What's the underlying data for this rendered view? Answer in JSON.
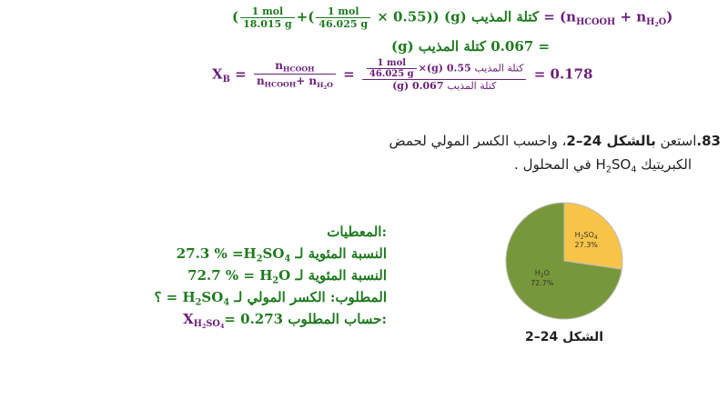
{
  "solution": {
    "line1": [
      "(",
      "1 mol",
      "18.015 g",
      "+(",
      "1 mol",
      "46.025 g",
      "× 0.55)) (g)",
      "كتلة المذيب",
      "= (n",
      "HCOOH",
      "+  n",
      "H",
      "2",
      "O",
      ")"
    ],
    "line2": [
      "(g)",
      "كتلة المذيب",
      "0.067 ="
    ],
    "line3": [
      "X",
      "B",
      "=",
      "n",
      "HCOOH",
      "n",
      "HCOOH",
      "+ n",
      "H",
      "2",
      "O",
      "=",
      "1 mol",
      "46.025 g",
      "×(g)",
      "كتلة المذيب",
      "0.55",
      "(g)",
      "كتلة المذيب",
      "0.067",
      "= 0.178"
    ]
  },
  "problem": {
    "line1": [
      "83.",
      "استعن ",
      "بالشكل 24–2",
      "، واحسب الكسر المولي لحمض"
    ],
    "line2": [
      "الكبريتيك ",
      "H",
      "2",
      "SO",
      "4",
      " في المحلول ."
    ]
  },
  "givens": {
    "heading": "المعطيات:",
    "line1": [
      "27.3 %",
      " =H",
      "2",
      "SO",
      "4",
      " النسبة المئوية لـ"
    ],
    "line2": [
      "72.7 %",
      " = H",
      "2",
      "O ",
      "النسبة المئوية لـ"
    ],
    "line3": [
      "؟ = ",
      "H",
      "2",
      "SO",
      "4",
      " المطلوب: الكسر المولي لـ"
    ],
    "line4": [
      "X",
      "H",
      "2",
      "SO",
      "4",
      "= 0.273 ",
      "حساب المطلوب:"
    ]
  },
  "figure": {
    "type": "pie",
    "caption": "الشكل 24–2",
    "slices": [
      {
        "name": [
          "H",
          "2",
          "SO",
          "4"
        ],
        "value": 27.3,
        "value_label": "27.3%",
        "color": "#f8c448"
      },
      {
        "name": [
          "H",
          "2",
          "O"
        ],
        "value": 72.7,
        "value_label": "72.7%",
        "color": "#77983a"
      }
    ]
  }
}
